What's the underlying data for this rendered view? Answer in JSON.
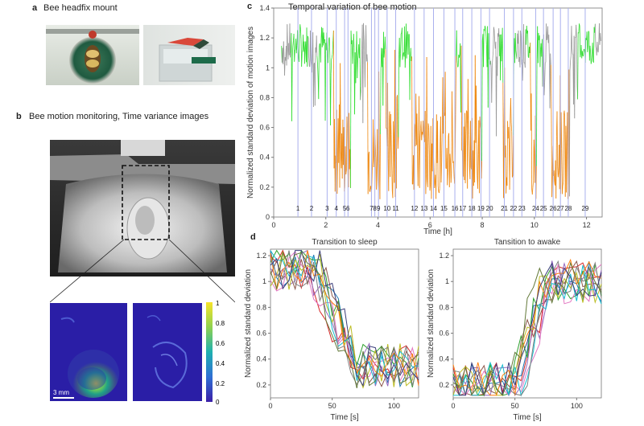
{
  "panels": {
    "a": {
      "letter": "a",
      "title": "Bee headfix mount"
    },
    "b": {
      "letter": "b",
      "title": "Bee motion monitoring, Time variance images",
      "scalebar": "3 mm",
      "colorbar_ticks": [
        "1",
        "0.8",
        "0.6",
        "0.4",
        "0.2",
        "0"
      ]
    },
    "c": {
      "letter": "c"
    },
    "d": {
      "letter": "d"
    }
  },
  "colors": {
    "awake": "#33dd33",
    "sleep": "#ee8811",
    "gray": "#999999",
    "marker": "#aab0ee"
  },
  "chart_data": [
    {
      "type": "line",
      "title": "Temporal variation of bee motion",
      "xlabel": "Time [h]",
      "ylabel": "Normalized standard deviation of motion images",
      "xlim": [
        0,
        12.6
      ],
      "ylim": [
        0,
        1.4
      ],
      "xticks": [
        "0",
        "2",
        "4",
        "6",
        "8",
        "10",
        "12"
      ],
      "yticks": [
        "0",
        "0.2",
        "0.4",
        "0.6",
        "0.8",
        "1",
        "1.2",
        "1.4"
      ],
      "events": [
        {
          "label": "1",
          "t": 0.93
        },
        {
          "label": "2",
          "t": 1.45
        },
        {
          "label": "3",
          "t": 2.05
        },
        {
          "label": "4",
          "t": 2.4
        },
        {
          "label": "5",
          "t": 2.72
        },
        {
          "label": "6",
          "t": 2.85
        },
        {
          "label": "7",
          "t": 3.75
        },
        {
          "label": "8",
          "t": 3.88
        },
        {
          "label": "9",
          "t": 4.02
        },
        {
          "label": "10",
          "t": 4.35
        },
        {
          "label": "11",
          "t": 4.68
        },
        {
          "label": "12",
          "t": 5.4
        },
        {
          "label": "13",
          "t": 5.77
        },
        {
          "label": "14",
          "t": 6.13
        },
        {
          "label": "15",
          "t": 6.53
        },
        {
          "label": "16",
          "t": 6.95
        },
        {
          "label": "17",
          "t": 7.25
        },
        {
          "label": "18",
          "t": 7.6
        },
        {
          "label": "19",
          "t": 7.95
        },
        {
          "label": "20",
          "t": 8.28
        },
        {
          "label": "21",
          "t": 8.85
        },
        {
          "label": "22",
          "t": 9.2
        },
        {
          "label": "23",
          "t": 9.52
        },
        {
          "label": "24",
          "t": 10.05
        },
        {
          "label": "25",
          "t": 10.35
        },
        {
          "label": "26",
          "t": 10.72
        },
        {
          "label": "27",
          "t": 11.0
        },
        {
          "label": "28",
          "t": 11.3
        },
        {
          "label": "29",
          "t": 11.95
        }
      ],
      "sleep_bouts": [
        [
          2.3,
          2.95
        ],
        [
          3.6,
          4.1
        ],
        [
          4.3,
          4.8
        ],
        [
          5.3,
          7.0
        ],
        [
          7.2,
          8.0
        ],
        [
          8.8,
          9.2
        ],
        [
          9.85,
          10.1
        ],
        [
          10.65,
          11.35
        ]
      ],
      "grid": false
    },
    {
      "type": "line",
      "title": "Transition to sleep",
      "xlabel": "Time [s]",
      "ylabel": "Normalized standard deviation",
      "xlim": [
        0,
        120
      ],
      "ylim": [
        0.1,
        1.25
      ],
      "xticks": [
        "0",
        "50",
        "100"
      ],
      "yticks": [
        "0.2",
        "0.4",
        "0.6",
        "0.8",
        "1",
        "1.2"
      ],
      "transition": {
        "from": 1.1,
        "to": 0.35,
        "start": 35,
        "end": 70
      },
      "series_count": 12
    },
    {
      "type": "line",
      "title": "Tansition to awake",
      "xlabel": "Time [s]",
      "ylabel": "Normalized standard deviation",
      "xlim": [
        0,
        120
      ],
      "ylim": [
        0.1,
        1.25
      ],
      "xticks": [
        "0",
        "50",
        "100"
      ],
      "yticks": [
        "0.2",
        "0.4",
        "0.6",
        "0.8",
        "1",
        "1.2"
      ],
      "transition": {
        "from": 0.2,
        "to": 1.0,
        "start": 50,
        "end": 75
      },
      "series_count": 12
    }
  ]
}
